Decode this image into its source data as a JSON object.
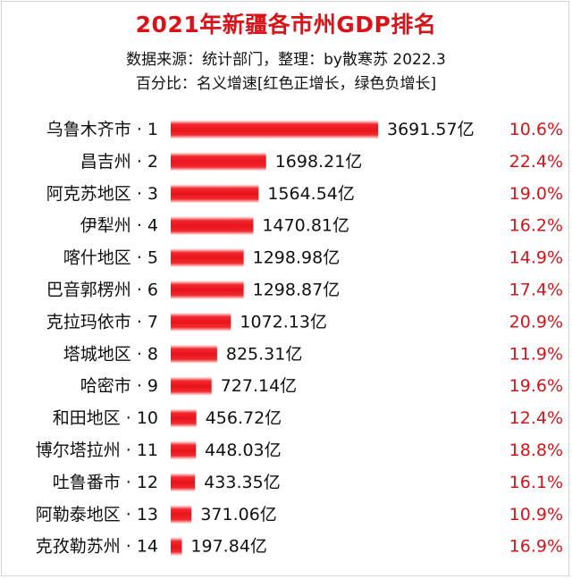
{
  "chart_data": {
    "type": "bar",
    "orientation": "horizontal",
    "title": "2021年新疆各市州GDP排名",
    "subtitle_lines": [
      "数据来源：统计部门，整理：by散寒苏 2022.3",
      "百分比：名义增速[红色正增长，绿色负增长]"
    ],
    "value_suffix": "亿",
    "bar_color": "#e8141a",
    "growth_color": "#d7141a",
    "xlim": [
      0,
      3691.57
    ],
    "grid": false,
    "categories": [
      "乌鲁木齐市 · 1",
      "昌吉州 · 2",
      "阿克苏地区 · 3",
      "伊犁州 · 4",
      "喀什地区 · 5",
      "巴音郭楞州 · 6",
      "克拉玛依市 · 7",
      "塔城地区 · 8",
      "哈密市 · 9",
      "和田地区 · 10",
      "博尔塔拉州 · 11",
      "吐鲁番市 · 12",
      "阿勒泰地区 · 13",
      "克孜勒苏州 · 14"
    ],
    "values": [
      3691.57,
      1698.21,
      1564.54,
      1470.81,
      1298.98,
      1298.87,
      1072.13,
      825.31,
      727.14,
      456.72,
      448.03,
      433.35,
      371.06,
      197.84
    ],
    "value_labels": [
      "3691.57亿",
      "1698.21亿",
      "1564.54亿",
      "1470.81亿",
      "1298.98亿",
      "1298.87亿",
      "1072.13亿",
      "825.31亿",
      "727.14亿",
      "456.72亿",
      "448.03亿",
      "433.35亿",
      "371.06亿",
      "197.84亿"
    ],
    "growth_labels": [
      "10.6%",
      "22.4%",
      "19.0%",
      "16.2%",
      "14.9%",
      "17.4%",
      "20.9%",
      "11.9%",
      "19.6%",
      "12.4%",
      "18.8%",
      "16.1%",
      "10.9%",
      "16.9%"
    ]
  }
}
